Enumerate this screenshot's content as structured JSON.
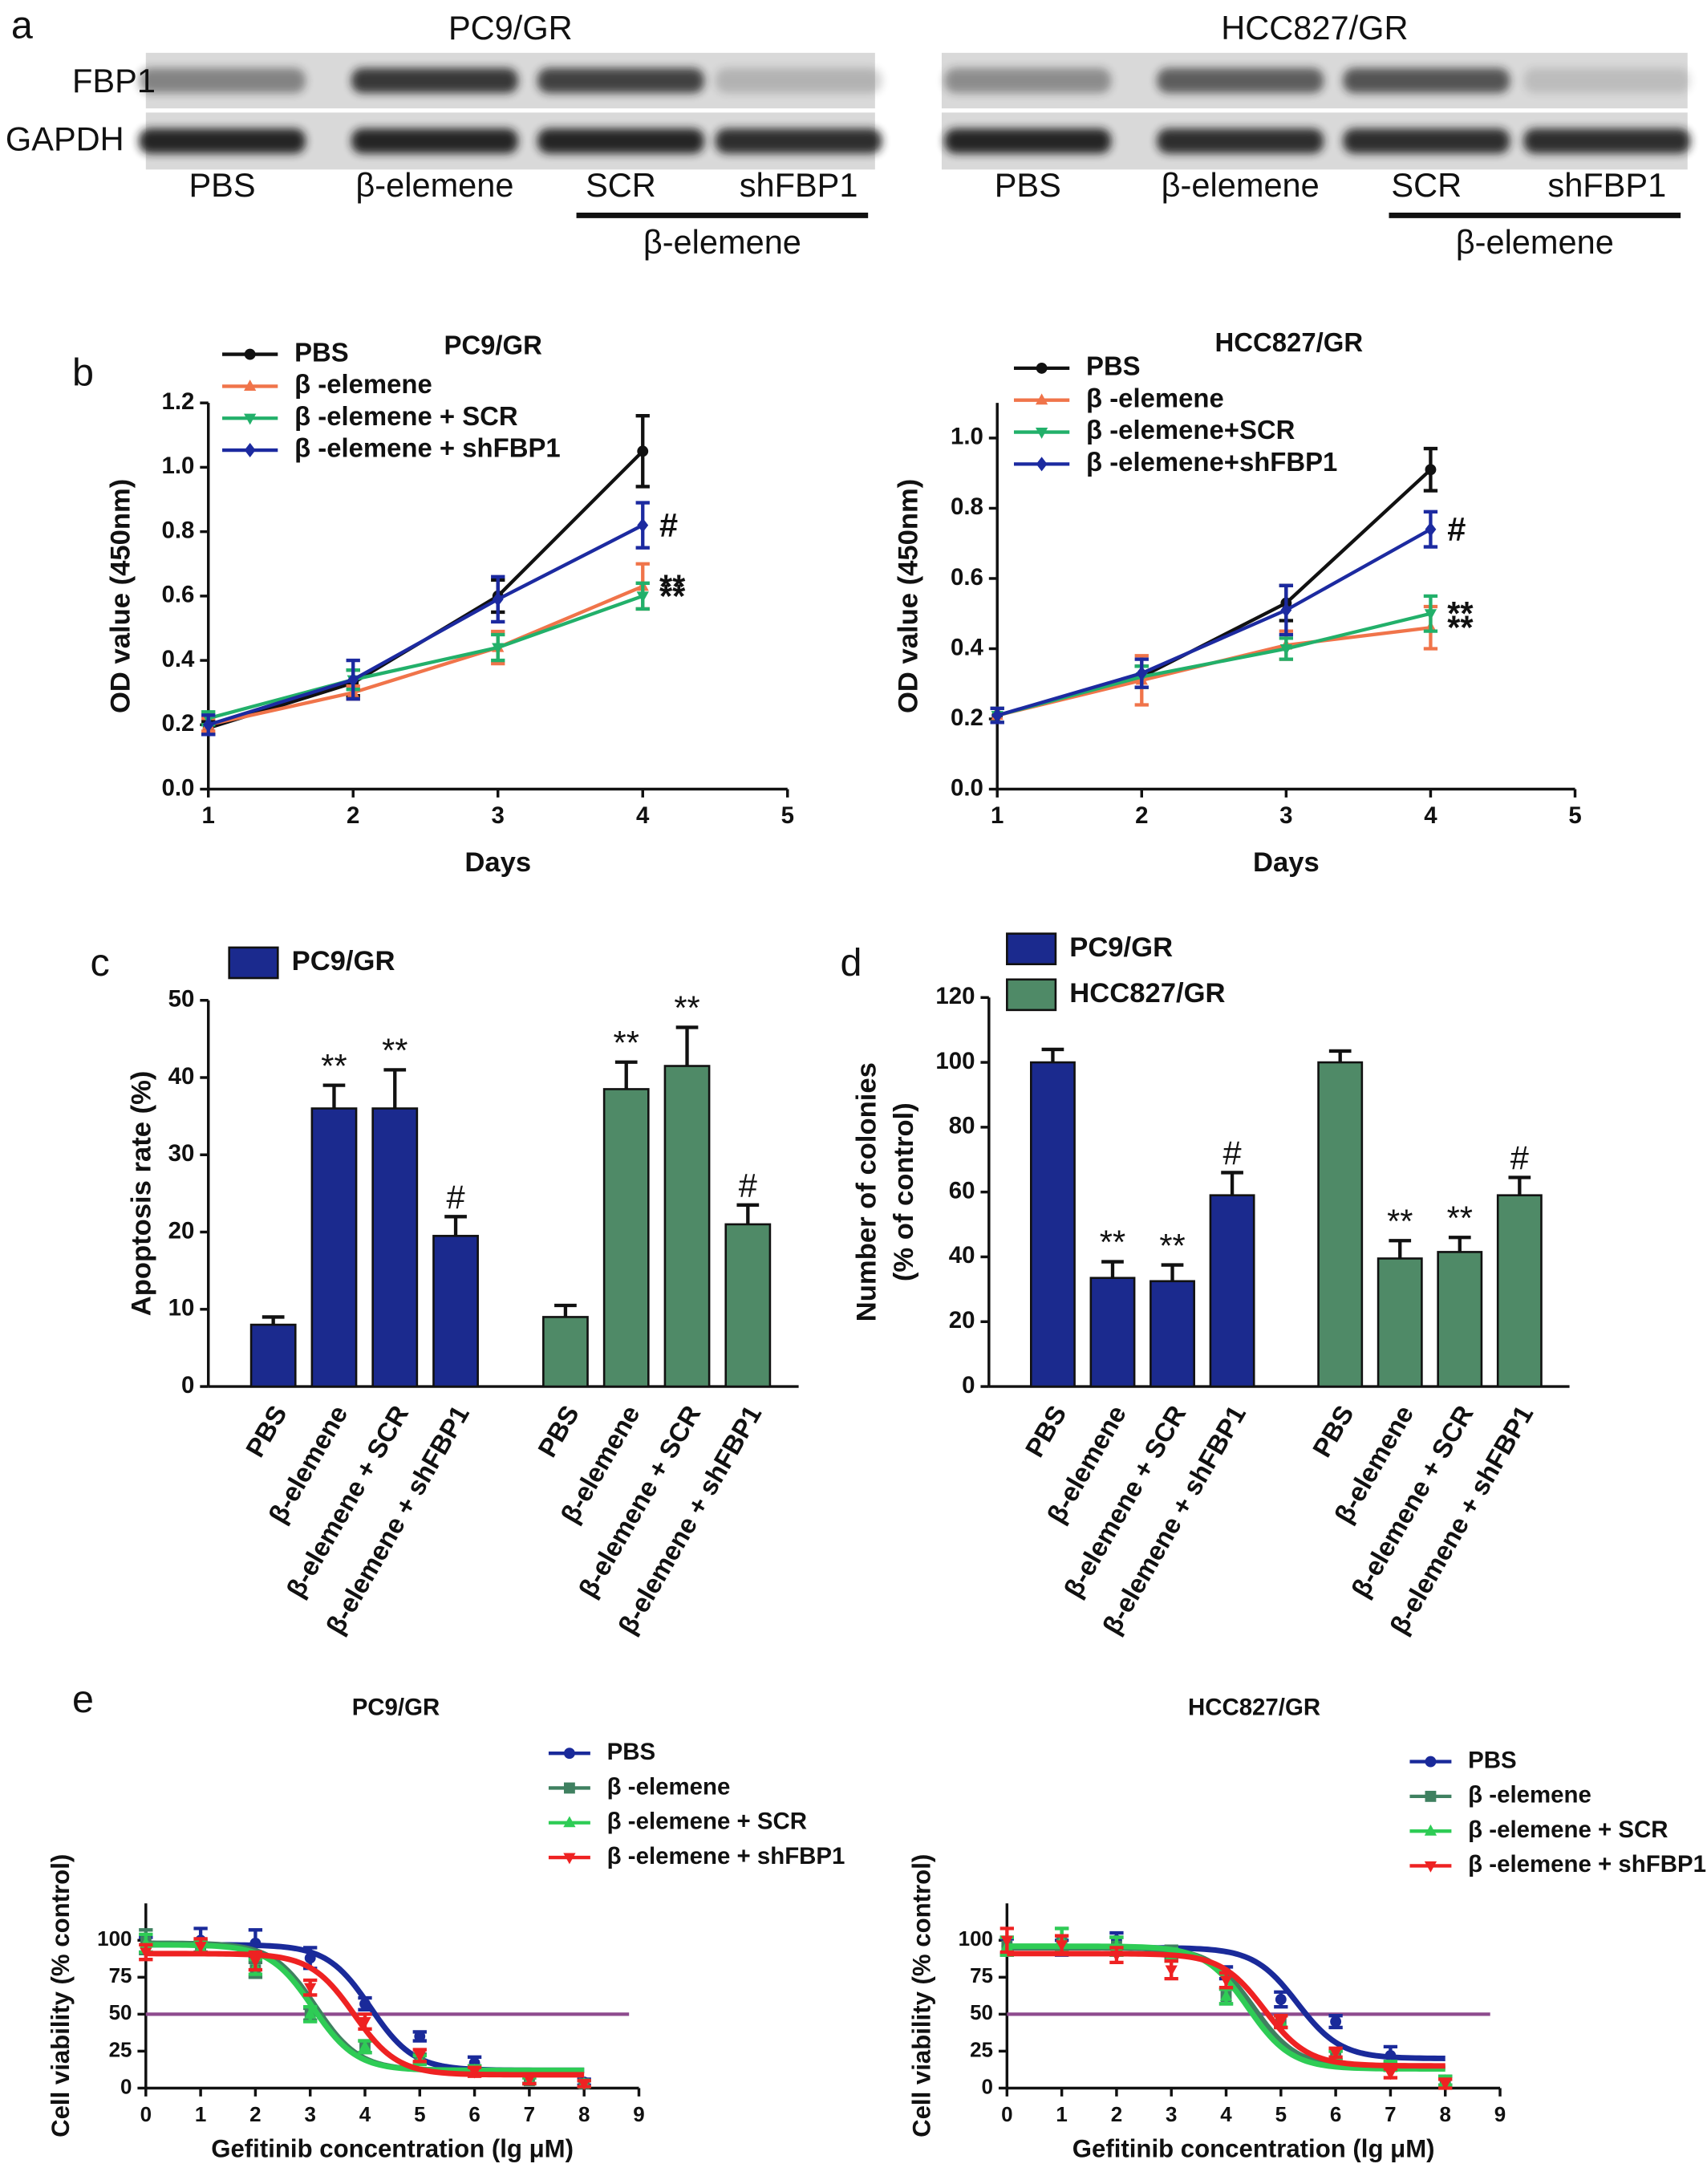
{
  "panel_labels": [
    "a",
    "b",
    "c",
    "d",
    "e"
  ],
  "blot": {
    "row_labels": [
      "FBP1",
      "GAPDH"
    ],
    "panels": [
      {
        "title": "PC9/GR",
        "lanes": [
          "PBS",
          "β-elemene",
          "SCR",
          "shFBP1"
        ],
        "group_label": "β-elemene"
      },
      {
        "title": "HCC827/GR",
        "lanes": [
          "PBS",
          "β-elemene",
          "SCR",
          "shFBP1"
        ],
        "group_label": "β-elemene"
      }
    ]
  },
  "chart_data": [
    {
      "type": "line",
      "title": "PC9/GR",
      "x_label": "Days",
      "y_label": "OD value (450nm)",
      "x": [
        1,
        2,
        3,
        4
      ],
      "xlim": [
        1,
        5
      ],
      "xticks": [
        1,
        2,
        3,
        4,
        5
      ],
      "ylim": [
        0,
        1.2
      ],
      "yticks": [
        {
          "value": 0,
          "label": "0.0"
        },
        0.2,
        0.4,
        0.6,
        0.8,
        {
          "value": 1,
          "label": "1.0"
        },
        1.2
      ],
      "series": [
        {
          "name": "PBS",
          "color": "#111111",
          "marker": "circle",
          "values": [
            0.19,
            0.33,
            0.6,
            1.05
          ],
          "errors": [
            0.02,
            0.04,
            0.05,
            0.11
          ]
        },
        {
          "name": "β -elemene",
          "color": "#f0744a",
          "marker": "triangle-up",
          "values": [
            0.2,
            0.3,
            0.44,
            0.63
          ],
          "errors": [
            0.02,
            0.02,
            0.05,
            0.07
          ],
          "annotation": "**"
        },
        {
          "name": "β -elemene + SCR",
          "color": "#22b06a",
          "marker": "triangle-down",
          "values": [
            0.22,
            0.34,
            0.44,
            0.6
          ],
          "errors": [
            0.02,
            0.03,
            0.04,
            0.04
          ],
          "annotation": "**"
        },
        {
          "name": "β -elemene + shFBP1",
          "color": "#1c2aa0",
          "marker": "diamond",
          "values": [
            0.2,
            0.34,
            0.59,
            0.82
          ],
          "errors": [
            0.03,
            0.06,
            0.07,
            0.07
          ],
          "annotation": "#"
        }
      ]
    },
    {
      "type": "line",
      "title": "HCC827/GR",
      "x_label": "Days",
      "y_label": "OD value (450nm)",
      "x": [
        1,
        2,
        3,
        4
      ],
      "xlim": [
        1,
        5
      ],
      "xticks": [
        1,
        2,
        3,
        4,
        5
      ],
      "ylim": [
        0,
        1.1
      ],
      "yticks": [
        {
          "value": 0,
          "label": "0.0"
        },
        0.2,
        0.4,
        0.6,
        0.8,
        {
          "value": 1,
          "label": "1.0"
        }
      ],
      "series": [
        {
          "name": "PBS",
          "color": "#111111",
          "marker": "circle",
          "values": [
            0.21,
            0.32,
            0.53,
            0.91
          ],
          "errors": [
            0.02,
            0.03,
            0.05,
            0.06
          ]
        },
        {
          "name": "β -elemene",
          "color": "#f0744a",
          "marker": "triangle-up",
          "values": [
            0.21,
            0.31,
            0.41,
            0.46
          ],
          "errors": [
            0.02,
            0.07,
            0.04,
            0.06
          ],
          "annotation": "**"
        },
        {
          "name": "β -elemene+SCR",
          "color": "#22b06a",
          "marker": "triangle-down",
          "values": [
            0.21,
            0.32,
            0.4,
            0.5
          ],
          "errors": [
            0.02,
            0.03,
            0.03,
            0.05
          ],
          "annotation": "**"
        },
        {
          "name": "β -elemene+shFBP1",
          "color": "#1c2aa0",
          "marker": "diamond",
          "values": [
            0.21,
            0.33,
            0.51,
            0.74
          ],
          "errors": [
            0.02,
            0.04,
            0.07,
            0.05
          ],
          "annotation": "#"
        }
      ]
    },
    {
      "type": "bar",
      "y_label": "Apoptosis rate (%)",
      "categories": [
        "PBS",
        "β-elemene",
        "β-elemene + SCR",
        "β-elemene + shFBP1"
      ],
      "ylim": [
        0,
        50
      ],
      "yticks": [
        0,
        10,
        20,
        30,
        40,
        50
      ],
      "series": [
        {
          "name": "PC9/GR",
          "color": "#1b2a8e",
          "values": [
            8,
            36,
            36,
            19.5
          ],
          "errors": [
            1,
            3,
            5,
            2.5
          ],
          "annotations": [
            null,
            "**",
            "**",
            "#"
          ]
        },
        {
          "color": "#4f8a67",
          "values": [
            9,
            38.5,
            41.5,
            21
          ],
          "errors": [
            1.5,
            3.5,
            5,
            2.5
          ],
          "annotations": [
            null,
            "**",
            "**",
            "#"
          ]
        }
      ]
    },
    {
      "type": "bar",
      "y_label": [
        "Number of colonies",
        "(% of control)"
      ],
      "categories": [
        "PBS",
        "β-elemene",
        "β-elemene + SCR",
        "β-elemene + shFBP1"
      ],
      "ylim": [
        0,
        120
      ],
      "yticks": [
        0,
        20,
        40,
        60,
        80,
        100,
        120
      ],
      "series": [
        {
          "name": "PC9/GR",
          "color": "#1b2a8e",
          "values": [
            100,
            33.5,
            32.5,
            59
          ],
          "errors": [
            4,
            5,
            5,
            7
          ],
          "annotations": [
            null,
            "**",
            "**",
            "#"
          ]
        },
        {
          "name": "HCC827/GR",
          "color": "#4f8a67",
          "values": [
            100,
            39.5,
            41.5,
            59
          ],
          "errors": [
            3.5,
            5.5,
            4.5,
            5.5
          ],
          "annotations": [
            null,
            "**",
            "**",
            "#"
          ]
        }
      ]
    },
    {
      "type": "dose_response",
      "title": "PC9/GR",
      "x_label": "Gefitinib concentration (lg μM)",
      "y_label": "Cell viability (% control)",
      "x": [
        0,
        1,
        2,
        3,
        4,
        5,
        6,
        7,
        8
      ],
      "xlim": [
        0,
        9
      ],
      "xticks": [
        0,
        1,
        2,
        3,
        4,
        5,
        6,
        7,
        8,
        9
      ],
      "ylim": [
        0,
        125
      ],
      "yticks": [
        0,
        25,
        50,
        75,
        100
      ],
      "reference_line": 50,
      "reference_color": "#8e4b8e",
      "series": [
        {
          "name": "PBS",
          "color": "#1a2a9a",
          "marker": "circle",
          "values": [
            97,
            100,
            98,
            88,
            57,
            35,
            17,
            6,
            4
          ],
          "errors": [
            5,
            8,
            9,
            7,
            4,
            3,
            4,
            3,
            2
          ],
          "fit": {
            "top": 97,
            "bottom": 12,
            "log_ic50": 4.1,
            "hill": 1.1
          }
        },
        {
          "name": "β -elemene",
          "color": "#3f8060",
          "marker": "square",
          "values": [
            99,
            96,
            80,
            50,
            28,
            20,
            12,
            5,
            3
          ],
          "errors": [
            8,
            4,
            5,
            4,
            4,
            3,
            3,
            2,
            2
          ],
          "fit": {
            "top": 98,
            "bottom": 12,
            "log_ic50": 3.1,
            "hill": 1.1
          }
        },
        {
          "name": "β -elemene + SCR",
          "color": "#2ecc55",
          "marker": "triangle-up",
          "values": [
            98,
            95,
            82,
            50,
            28,
            19,
            12,
            5,
            3
          ],
          "errors": [
            6,
            4,
            5,
            5,
            4,
            3,
            3,
            2,
            2
          ],
          "fit": {
            "top": 97,
            "bottom": 12,
            "log_ic50": 3.05,
            "hill": 1.1
          }
        },
        {
          "name": "β -elemene + shFBP1",
          "color": "#ee2222",
          "marker": "triangle-down",
          "values": [
            92,
            96,
            86,
            68,
            45,
            22,
            11,
            6,
            3
          ],
          "errors": [
            5,
            5,
            6,
            5,
            5,
            4,
            3,
            3,
            2
          ],
          "fit": {
            "top": 91,
            "bottom": 9,
            "log_ic50": 3.8,
            "hill": 1.1
          }
        }
      ]
    },
    {
      "type": "dose_response",
      "title": "HCC827/GR",
      "x_label": "Gefitinib concentration (lg μM)",
      "y_label": "Cell viability (% control)",
      "x": [
        0,
        1,
        2,
        3,
        4,
        5,
        6,
        7,
        8
      ],
      "xlim": [
        0,
        9
      ],
      "xticks": [
        0,
        1,
        2,
        3,
        4,
        5,
        6,
        7,
        8,
        9
      ],
      "ylim": [
        0,
        125
      ],
      "yticks": [
        0,
        25,
        50,
        75,
        100
      ],
      "reference_line": 50,
      "reference_color": "#8e4b8e",
      "series": [
        {
          "name": "PBS",
          "color": "#1a2a9a",
          "marker": "circle",
          "values": [
            96,
            95,
            100,
            92,
            78,
            60,
            45,
            22,
            5
          ],
          "errors": [
            5,
            5,
            5,
            3,
            4,
            5,
            4,
            6,
            3
          ],
          "fit": {
            "top": 95,
            "bottom": 20,
            "log_ic50": 5.3,
            "hill": 1.1
          }
        },
        {
          "name": "β -elemene",
          "color": "#3f8060",
          "marker": "square",
          "values": [
            96,
            100,
            96,
            92,
            62,
            45,
            22,
            15,
            5
          ],
          "errors": [
            6,
            8,
            6,
            4,
            5,
            4,
            3,
            3,
            3
          ],
          "fit": {
            "top": 95,
            "bottom": 14,
            "log_ic50": 4.5,
            "hill": 1.1
          }
        },
        {
          "name": "β -elemene + SCR",
          "color": "#2ecc55",
          "marker": "triangle-up",
          "values": [
            96,
            100,
            96,
            90,
            62,
            45,
            22,
            15,
            5
          ],
          "errors": [
            6,
            8,
            6,
            4,
            5,
            4,
            3,
            3,
            3
          ],
          "fit": {
            "top": 96,
            "bottom": 13,
            "log_ic50": 4.4,
            "hill": 1.1
          }
        },
        {
          "name": "β -elemene + shFBP1",
          "color": "#ee2222",
          "marker": "triangle-down",
          "values": [
            100,
            97,
            90,
            80,
            73,
            45,
            24,
            10,
            3
          ],
          "errors": [
            8,
            6,
            5,
            6,
            5,
            4,
            3,
            3,
            3
          ],
          "fit": {
            "top": 91,
            "bottom": 15,
            "log_ic50": 4.7,
            "hill": 1.1
          }
        }
      ]
    }
  ]
}
